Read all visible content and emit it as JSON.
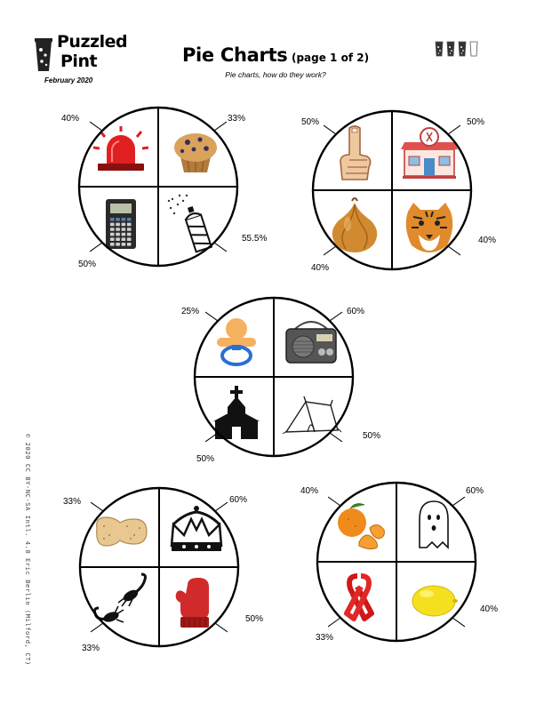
{
  "header": {
    "logo_line1": "Puzzled",
    "logo_line2": "Pint",
    "logo_date": "February 2020",
    "title": "Pie Charts",
    "title_suffix": "(page 1 of 2)",
    "subtitle": "Pie charts, how do they work?"
  },
  "progress": {
    "filled": 3,
    "total": 4
  },
  "copyright": "© 2020 CC BY-NC-SA Intl. 4.0  Eric Berlin (Milford, CT)",
  "pies": [
    {
      "id": "pie-1",
      "slices": [
        {
          "pos": "tl",
          "icon": "siren-icon",
          "percent": "40%"
        },
        {
          "pos": "tr",
          "icon": "muffin-icon",
          "percent": "33%"
        },
        {
          "pos": "br",
          "icon": "spray-can-icon",
          "percent": "55.5%"
        },
        {
          "pos": "bl",
          "icon": "calculator-icon",
          "percent": "50%"
        }
      ]
    },
    {
      "id": "pie-2",
      "slices": [
        {
          "pos": "tl",
          "icon": "pointing-finger-icon",
          "percent": "50%"
        },
        {
          "pos": "tr",
          "icon": "diner-icon",
          "percent": "50%"
        },
        {
          "pos": "br",
          "icon": "tiger-icon",
          "percent": "40%"
        },
        {
          "pos": "bl",
          "icon": "onion-icon",
          "percent": "40%"
        }
      ]
    },
    {
      "id": "pie-3",
      "slices": [
        {
          "pos": "tl",
          "icon": "pacifier-icon",
          "percent": "25%"
        },
        {
          "pos": "tr",
          "icon": "radio-icon",
          "percent": "60%"
        },
        {
          "pos": "br",
          "icon": "tent-icon",
          "percent": "50%"
        },
        {
          "pos": "bl",
          "icon": "church-icon",
          "percent": "50%"
        }
      ]
    },
    {
      "id": "pie-4",
      "slices": [
        {
          "pos": "tl",
          "icon": "peanut-icon",
          "percent": "33%"
        },
        {
          "pos": "tr",
          "icon": "crown-icon",
          "percent": "60%"
        },
        {
          "pos": "br",
          "icon": "mitten-icon",
          "percent": "50%"
        },
        {
          "pos": "bl",
          "icon": "scorpion-icon",
          "percent": "33%"
        }
      ]
    },
    {
      "id": "pie-5",
      "slices": [
        {
          "pos": "tl",
          "icon": "tangerine-icon",
          "percent": "40%"
        },
        {
          "pos": "tr",
          "icon": "ghost-icon",
          "percent": "60%"
        },
        {
          "pos": "br",
          "icon": "lemon-icon",
          "percent": "40%"
        },
        {
          "pos": "bl",
          "icon": "ribbon-icon",
          "percent": "33%"
        }
      ]
    }
  ]
}
